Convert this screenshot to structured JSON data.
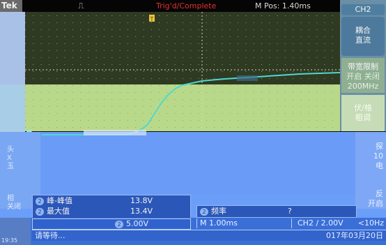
{
  "topbar": {
    "brand": "Tek",
    "trigger_glyph": "⎍",
    "status": "Trig'd/Complete",
    "mpos": "M Pos: 1.40ms"
  },
  "channel_marker": "2",
  "right_menu": {
    "title": "CH2",
    "coupling_label": "耦合",
    "coupling_value": "直流",
    "bw_label": "带宽限制",
    "bw_value": "开启 关闭",
    "bw_freq": "200MHz",
    "invert_label": "伏/格",
    "invert_value": "粗调",
    "probe_label": "探",
    "probe_value1": "10",
    "probe_value2": "电",
    "reverse_label": "反",
    "reverse_value": "开启"
  },
  "left_menu": {
    "item1_a": "头",
    "item1_b": "X",
    "item1_c": "玉",
    "item2_a": "相",
    "item2_b": "关闭"
  },
  "measurements": [
    {
      "badge": "2",
      "name": "峰-峰值",
      "value": "13.8V"
    },
    {
      "badge": "2",
      "name": "最大值",
      "value": "13.4V"
    }
  ],
  "freq_measurement": {
    "badge": "2",
    "name": "频率",
    "value": "?"
  },
  "status": {
    "ch_badge": "2",
    "ch_scale": "5.00V",
    "timebase": "M 1.00ms",
    "trigger": "CH2 ∕ 2.00V",
    "trigger_freq": "<10Hz",
    "message": "请等待...",
    "date": "017年03月20日",
    "corner_time": "19:35"
  },
  "colors": {
    "waveform": "#4fd8d0",
    "grid_dot": "#8f9e6a"
  }
}
